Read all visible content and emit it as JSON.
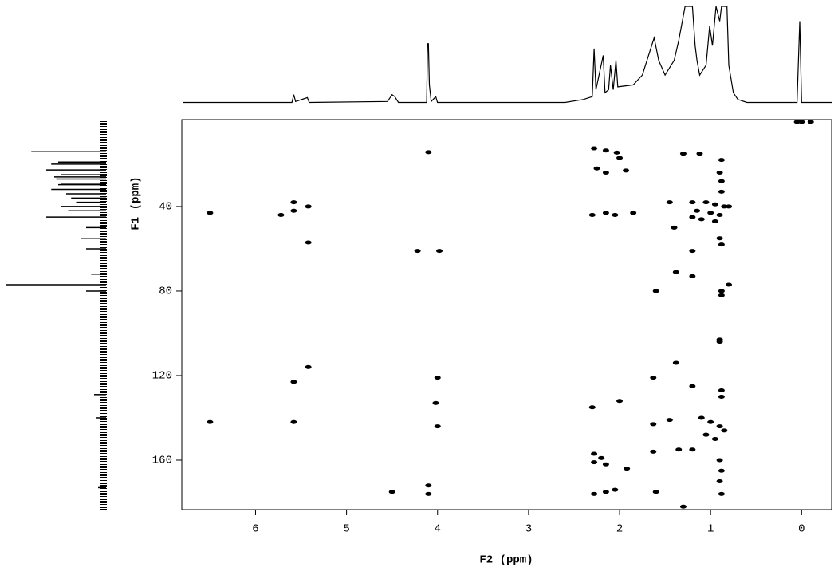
{
  "chart_data": [
    {
      "type": "line",
      "x": [
        6.8,
        5.6,
        5.58,
        5.56,
        5.43,
        5.41,
        4.55,
        4.5,
        4.47,
        4.43,
        4.12,
        4.11,
        4.1,
        4.09,
        4.07,
        4.02,
        4.0,
        2.6,
        2.4,
        2.3,
        2.28,
        2.26,
        2.18,
        2.16,
        2.12,
        2.1,
        2.07,
        2.04,
        2.02,
        1.85,
        1.75,
        1.62,
        1.57,
        1.5,
        1.4,
        1.35,
        1.28,
        1.2,
        1.17,
        1.15,
        1.12,
        1.05,
        1.01,
        0.98,
        0.94,
        0.9,
        0.88,
        0.82,
        0.8,
        0.75,
        0.7,
        0.6,
        0.06,
        0.05,
        0.02,
        0.0,
        -0.33
      ],
      "values": [
        2,
        2,
        10,
        3,
        7,
        2,
        3,
        10,
        8,
        2,
        2,
        62,
        62,
        20,
        3,
        8,
        2,
        2,
        5,
        8,
        57,
        15,
        50,
        12,
        15,
        40,
        15,
        45,
        18,
        20,
        30,
        68,
        45,
        30,
        45,
        65,
        100,
        100,
        60,
        45,
        30,
        40,
        80,
        60,
        100,
        85,
        100,
        100,
        40,
        12,
        5,
        2,
        2,
        2,
        85,
        2,
        2
      ],
      "color": "#000000",
      "ylim": [
        0,
        100
      ]
    },
    {
      "type": "bar",
      "orientation": "horizontal",
      "categories": [
        14.1,
        19,
        20,
        22.7,
        25,
        26,
        27,
        29,
        29.7,
        31.9,
        34,
        36,
        38,
        40,
        42,
        45,
        50,
        55,
        60,
        72,
        77.0,
        80,
        129,
        140,
        173
      ],
      "values": [
        75,
        48,
        55,
        60,
        45,
        52,
        50,
        45,
        48,
        55,
        40,
        35,
        30,
        45,
        38,
        60,
        20,
        25,
        20,
        15,
        100,
        20,
        12,
        10,
        8
      ],
      "color": "#000000",
      "xlim": [
        0,
        100
      ]
    },
    {
      "type": "scatter",
      "xlabel": "F2 (ppm)",
      "ylabel": "F1 (ppm)",
      "color": "#000000",
      "xlim": [
        6.81,
        -0.33
      ],
      "ylim": [
        -1.1,
        183.4
      ],
      "xticks": [
        6,
        5,
        4,
        3,
        2,
        1,
        0
      ],
      "yticks": [
        40,
        80,
        120,
        160
      ],
      "x": [
        0.05,
        0.0,
        -0.1,
        4.1,
        2.28,
        2.15,
        2.03,
        2.0,
        0.88,
        0.9,
        1.3,
        1.12,
        2.25,
        2.15,
        1.93,
        0.88,
        0.88,
        1.2,
        1.05,
        0.95,
        0.85,
        1.15,
        1.0,
        0.9,
        1.2,
        1.1,
        0.95,
        0.8,
        5.58,
        5.58,
        5.42,
        6.5,
        5.72,
        2.3,
        2.15,
        2.05,
        1.85,
        1.45,
        1.4,
        5.42,
        4.22,
        3.98,
        1.2,
        0.9,
        0.88,
        1.38,
        1.2,
        0.88,
        0.88,
        0.8,
        1.6,
        0.9,
        0.9,
        1.38,
        5.42,
        5.58,
        4.0,
        1.63,
        1.2,
        0.88,
        0.88,
        4.02,
        2.0,
        2.3,
        1.63,
        1.45,
        6.5,
        5.58,
        4.0,
        1.1,
        1.0,
        0.9,
        0.85,
        1.05,
        0.95,
        2.28,
        2.2,
        2.15,
        2.28,
        1.92,
        1.63,
        1.35,
        1.2,
        0.9,
        0.88,
        0.9,
        4.5,
        4.1,
        4.1,
        2.28,
        2.15,
        2.05,
        1.6,
        0.88,
        1.3
      ],
      "values": [
        0,
        0,
        0,
        14.3,
        12.5,
        13.5,
        14.5,
        17,
        18,
        24,
        15,
        15,
        22,
        24,
        23,
        28,
        33,
        38,
        38,
        39,
        40,
        42,
        43,
        44,
        45,
        46,
        47,
        40,
        38,
        42,
        40,
        43,
        44,
        44,
        43,
        44,
        43,
        38,
        50,
        57,
        61,
        61,
        61,
        55,
        58,
        71,
        73,
        80,
        82,
        77,
        80,
        103,
        104,
        114,
        116,
        123,
        121,
        121,
        125,
        127,
        130,
        133,
        132,
        135,
        143,
        141,
        142,
        142,
        144,
        140,
        142,
        144,
        146,
        148,
        150,
        157,
        159,
        162,
        161,
        164,
        156,
        155,
        155,
        160,
        165,
        170,
        175,
        172,
        176,
        176,
        175,
        174,
        175,
        176,
        182
      ]
    }
  ]
}
